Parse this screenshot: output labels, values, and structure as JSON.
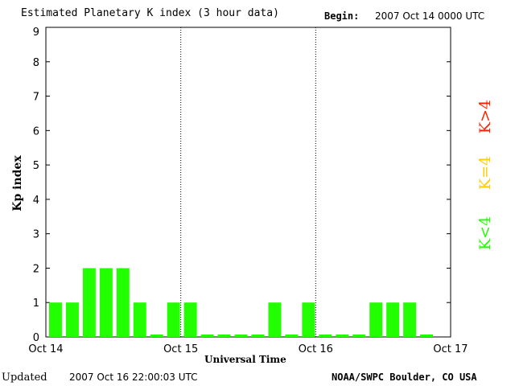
{
  "header": {
    "title": "Estimated Planetary K index (3 hour data)",
    "begin_label": "Begin:",
    "begin_value": "2007 Oct 14 0000 UTC"
  },
  "footer": {
    "updated_label": "Updated",
    "updated_value": "2007 Oct 16 22:00:03 UTC",
    "credit": "NOAA/SWPC Boulder, CO USA"
  },
  "legend": {
    "high_label": "K>4",
    "eq_label": "K=4",
    "low_label": "K<4",
    "high_color": "#ff2200",
    "eq_color": "#ffcc00",
    "low_color": "#22ff00"
  },
  "chart_data": {
    "type": "bar",
    "title": "Estimated Planetary K index (3 hour data)",
    "xlabel": "Universal Time",
    "ylabel": "Kp index",
    "ylim": [
      0,
      9
    ],
    "yticks": [
      0,
      1,
      2,
      3,
      4,
      5,
      6,
      7,
      8,
      9
    ],
    "x_tick_labels": [
      "Oct 14",
      "Oct 15",
      "Oct 16",
      "Oct 17"
    ],
    "day_dividers": [
      "Oct 15",
      "Oct 16"
    ],
    "bar_interval_hours": 3,
    "bar_color": "#22ff00",
    "values": [
      1,
      1,
      2,
      2,
      2,
      1,
      0,
      1,
      1,
      0,
      0,
      0,
      0,
      1,
      0,
      1,
      0,
      0,
      0,
      1,
      1,
      1,
      0
    ]
  }
}
